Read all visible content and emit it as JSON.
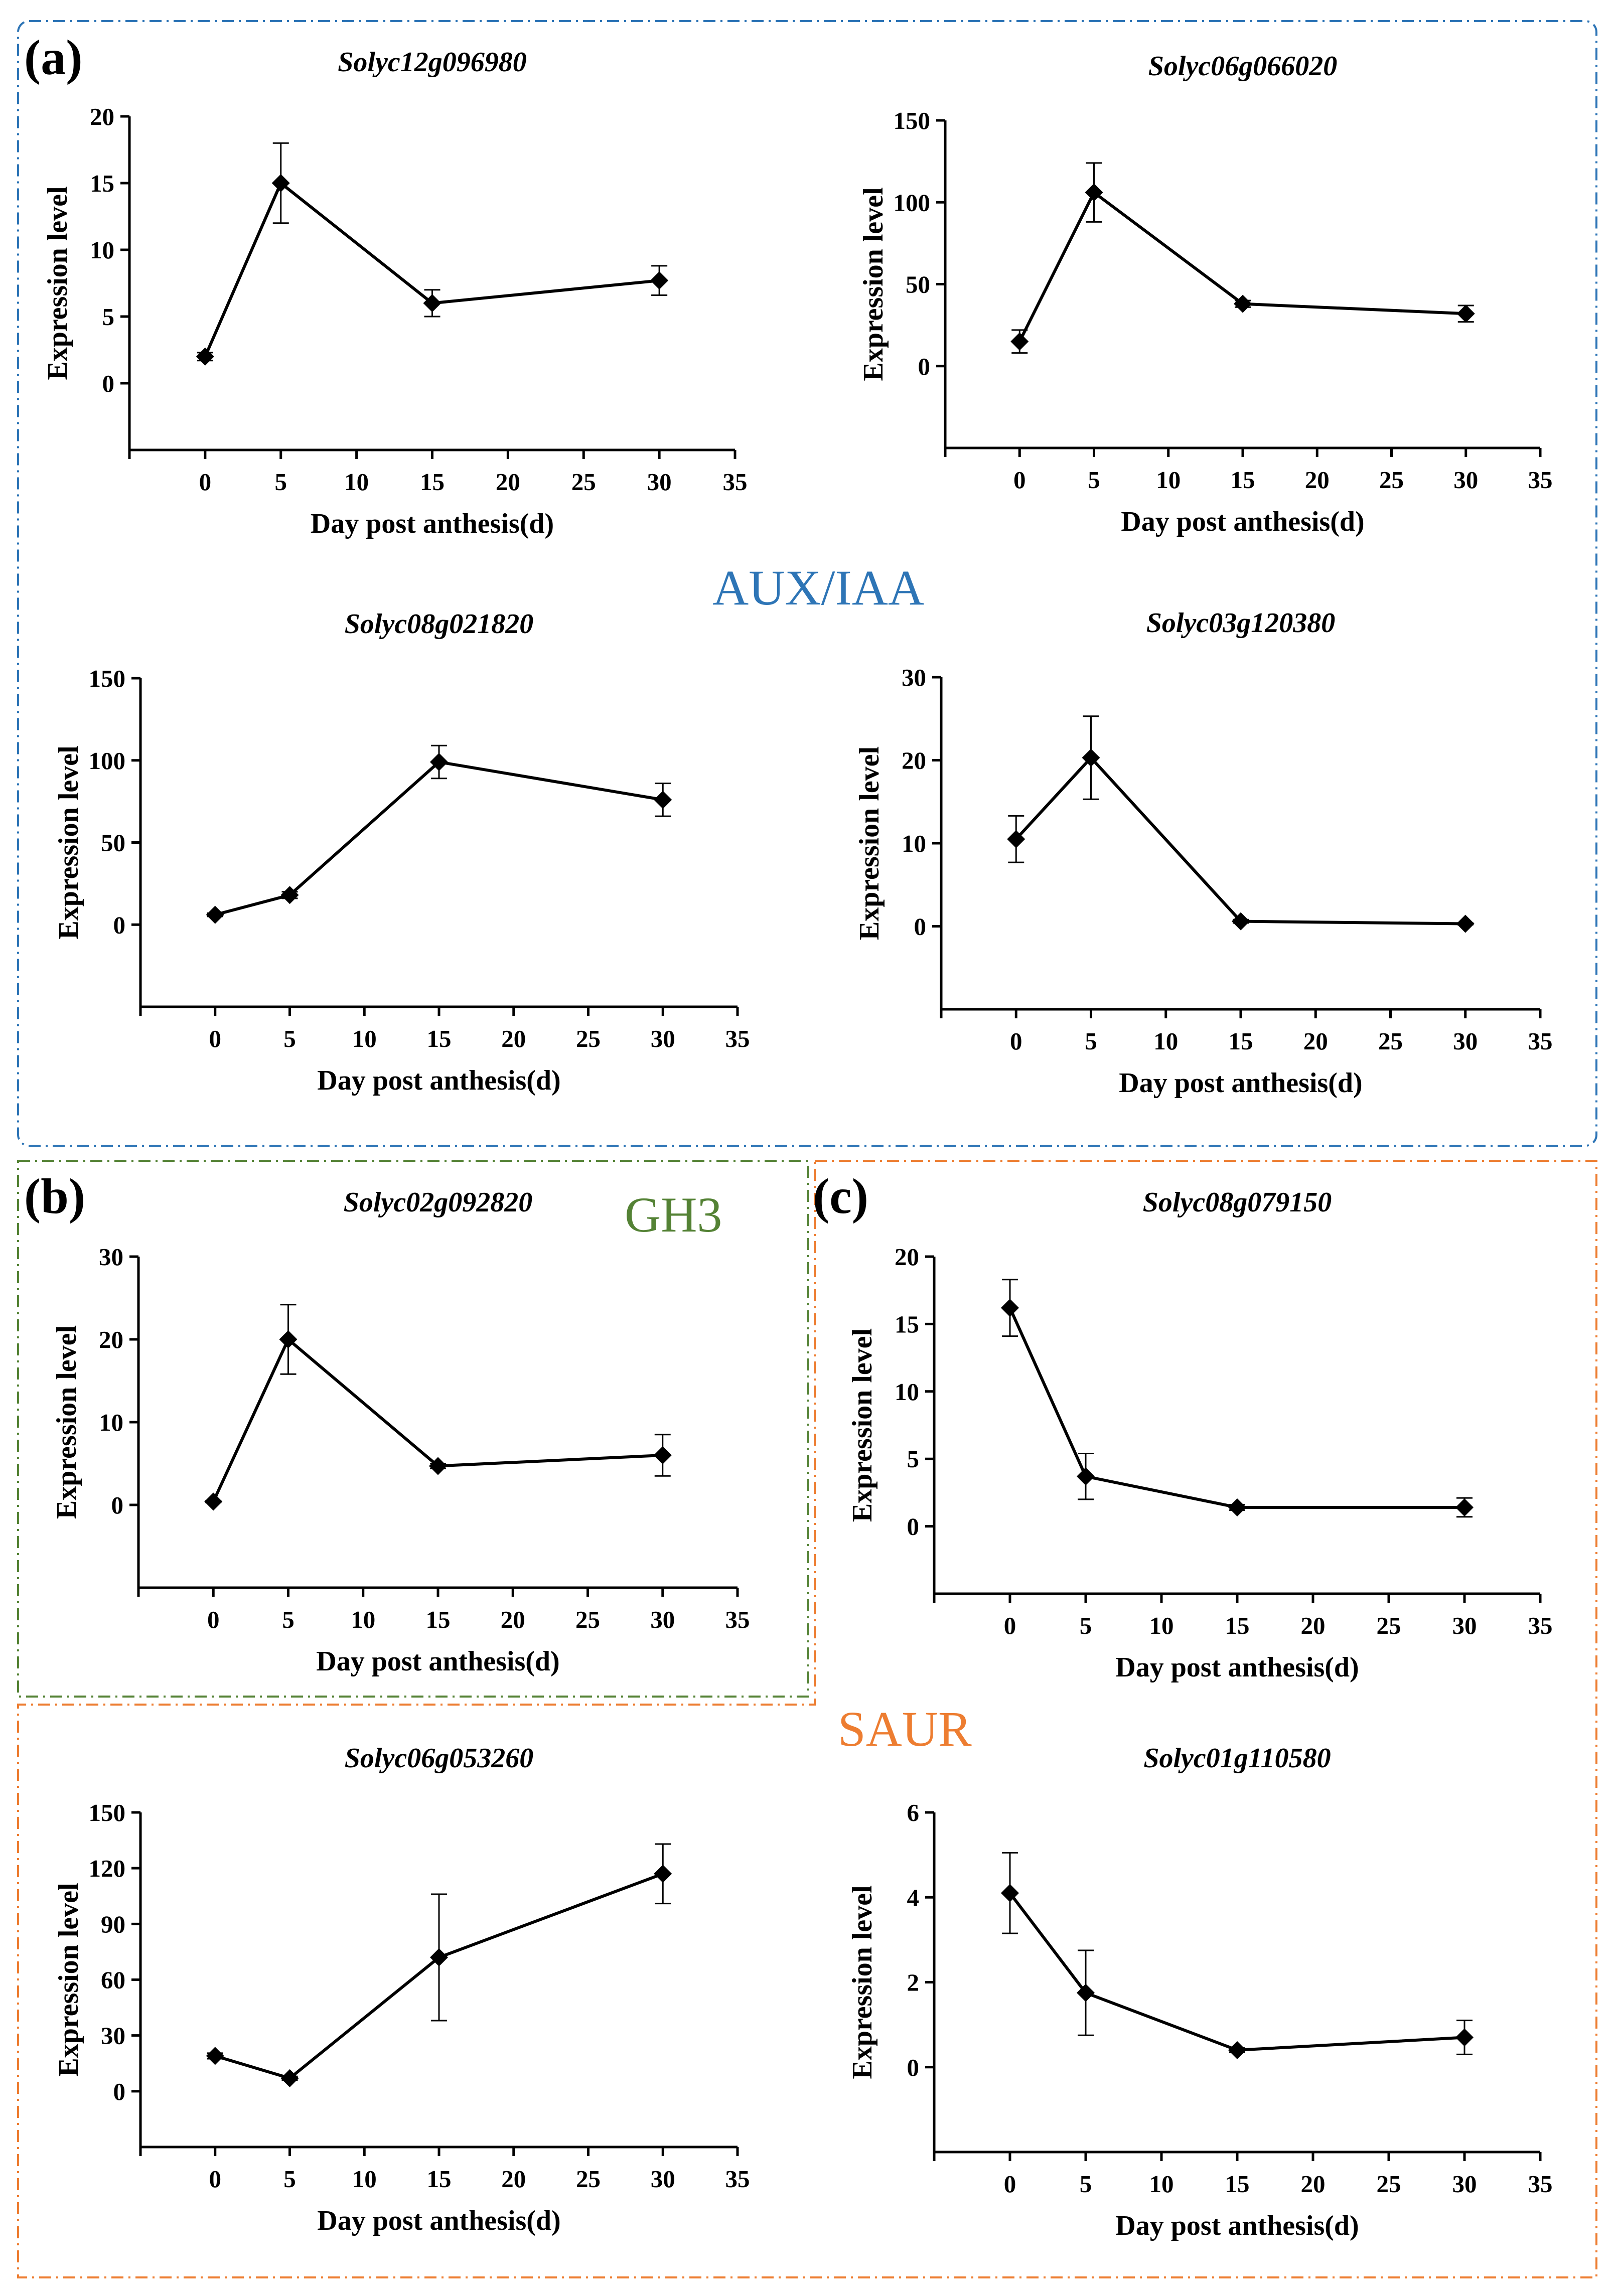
{
  "panel_labels": {
    "a": "(a)",
    "b": "(b)",
    "c": "(c)"
  },
  "group_labels": {
    "aux": {
      "text": "AUX/IAA",
      "color": "#2E75B6"
    },
    "gh3": {
      "text": "GH3",
      "color": "#548235"
    },
    "saur": {
      "text": "SAUR",
      "color": "#ED7D31"
    }
  },
  "chart_data": [
    {
      "type": "line",
      "title": "Solyc12g096980",
      "xlabel": "Day post anthesis(d)",
      "ylabel": "Expression level",
      "x": [
        0,
        5,
        15,
        30
      ],
      "values": [
        2,
        15,
        6,
        7.7
      ],
      "errors": [
        0.3,
        3,
        1,
        1.1
      ],
      "xlim": [
        -5,
        35
      ],
      "xticks": [
        0,
        5,
        10,
        15,
        20,
        25,
        30,
        35
      ],
      "ylim": [
        -5,
        20
      ],
      "yticks": [
        0,
        5,
        10,
        15,
        20
      ]
    },
    {
      "type": "line",
      "title": "Solyc06g066020",
      "xlabel": "Day post anthesis(d)",
      "ylabel": "Expression level",
      "x": [
        0,
        5,
        15,
        30
      ],
      "values": [
        15,
        106,
        38,
        32
      ],
      "errors": [
        7,
        18,
        2,
        5
      ],
      "xlim": [
        -5,
        35
      ],
      "xticks": [
        0,
        5,
        10,
        15,
        20,
        25,
        30,
        35
      ],
      "ylim": [
        -50,
        150
      ],
      "yticks": [
        0,
        50,
        100,
        150
      ]
    },
    {
      "type": "line",
      "title": "Solyc08g021820",
      "xlabel": "Day post anthesis(d)",
      "ylabel": "Expression level",
      "x": [
        0,
        5,
        15,
        30
      ],
      "values": [
        6,
        18,
        99,
        76
      ],
      "errors": [
        1,
        2,
        10,
        10
      ],
      "xlim": [
        -5,
        35
      ],
      "xticks": [
        0,
        5,
        10,
        15,
        20,
        25,
        30,
        35
      ],
      "ylim": [
        -50,
        150
      ],
      "yticks": [
        0,
        50,
        100,
        150
      ]
    },
    {
      "type": "line",
      "title": "Solyc03g120380",
      "xlabel": "Day post anthesis(d)",
      "ylabel": "Expression level",
      "x": [
        0,
        5,
        15,
        30
      ],
      "values": [
        10.5,
        20.3,
        0.6,
        0.3
      ],
      "errors": [
        2.8,
        5,
        0.2,
        0.1
      ],
      "xlim": [
        -5,
        35
      ],
      "xticks": [
        0,
        5,
        10,
        15,
        20,
        25,
        30,
        35
      ],
      "ylim": [
        -10,
        30
      ],
      "yticks": [
        0,
        10,
        20,
        30
      ]
    },
    {
      "type": "line",
      "title": "Solyc02g092820",
      "xlabel": "Day post anthesis(d)",
      "ylabel": "Expression level",
      "x": [
        0,
        5,
        15,
        30
      ],
      "values": [
        0.4,
        20,
        4.7,
        6
      ],
      "errors": [
        0.1,
        4.2,
        0.3,
        2.5
      ],
      "xlim": [
        -5,
        35
      ],
      "xticks": [
        0,
        5,
        10,
        15,
        20,
        25,
        30,
        35
      ],
      "ylim": [
        -10,
        30
      ],
      "yticks": [
        0,
        10,
        20,
        30
      ]
    },
    {
      "type": "line",
      "title": "Solyc08g079150",
      "xlabel": "Day post anthesis(d)",
      "ylabel": "Expression level",
      "x": [
        0,
        5,
        15,
        30
      ],
      "values": [
        16.2,
        3.7,
        1.4,
        1.4
      ],
      "errors": [
        2.1,
        1.7,
        0.2,
        0.7
      ],
      "xlim": [
        -5,
        35
      ],
      "xticks": [
        0,
        5,
        10,
        15,
        20,
        25,
        30,
        35
      ],
      "ylim": [
        -5,
        20
      ],
      "yticks": [
        0,
        5,
        10,
        15,
        20
      ]
    },
    {
      "type": "line",
      "title": "Solyc06g053260",
      "xlabel": "Day post anthesis(d)",
      "ylabel": "Expression level",
      "x": [
        0,
        5,
        15,
        30
      ],
      "values": [
        19,
        7,
        72,
        117
      ],
      "errors": [
        1.5,
        1,
        34,
        16
      ],
      "xlim": [
        -5,
        35
      ],
      "xticks": [
        0,
        5,
        10,
        15,
        20,
        25,
        30,
        35
      ],
      "ylim": [
        -30,
        150
      ],
      "yticks": [
        0,
        30,
        60,
        90,
        120,
        150
      ]
    },
    {
      "type": "line",
      "title": "Solyc01g110580",
      "xlabel": "Day post anthesis(d)",
      "ylabel": "Expression level",
      "x": [
        0,
        5,
        15,
        30
      ],
      "values": [
        4.1,
        1.75,
        0.4,
        0.7
      ],
      "errors": [
        0.95,
        1,
        0.05,
        0.4
      ],
      "xlim": [
        -5,
        35
      ],
      "xticks": [
        0,
        5,
        10,
        15,
        20,
        25,
        30,
        35
      ],
      "ylim": [
        -2,
        6
      ],
      "yticks": [
        0,
        2,
        4,
        6
      ]
    }
  ]
}
